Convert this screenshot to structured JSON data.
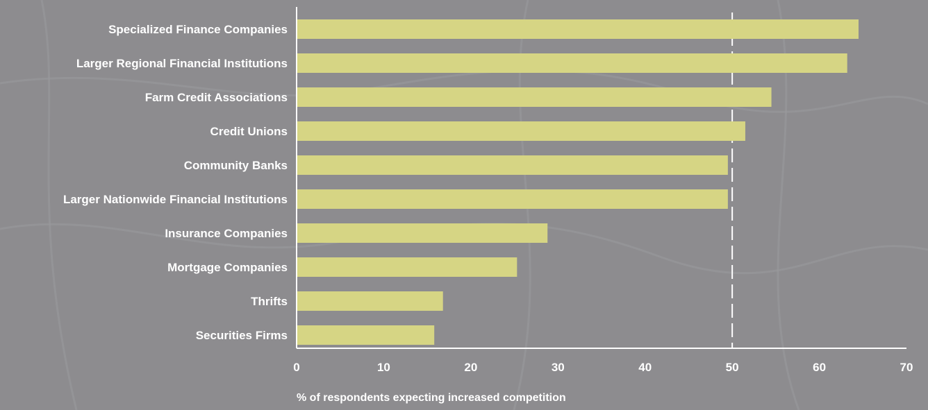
{
  "chart_data": {
    "type": "bar",
    "orientation": "horizontal",
    "categories": [
      "Specialized Finance Companies",
      "Larger Regional Financial Institutions",
      "Farm Credit Associations",
      "Credit Unions",
      "Community Banks",
      "Larger Nationwide Financial Institutions",
      "Insurance Companies",
      "Mortgage Companies",
      "Thrifts",
      "Securities Firms"
    ],
    "values": [
      64.5,
      63.2,
      54.5,
      51.5,
      49.5,
      49.5,
      28.8,
      25.3,
      16.8,
      15.8
    ],
    "xlabel": "% of respondents expecting increased competition",
    "ylabel": "",
    "xlim": [
      0,
      70
    ],
    "xticks": [
      "0",
      "10",
      "20",
      "30",
      "40",
      "50",
      "60",
      "70"
    ],
    "reference_line": 50,
    "grid": false,
    "legend": "none",
    "colors": {
      "bar": "#d6d584",
      "axis": "#ffffff",
      "reference_line": "#ffffff",
      "background": "#8d8c8f"
    }
  }
}
